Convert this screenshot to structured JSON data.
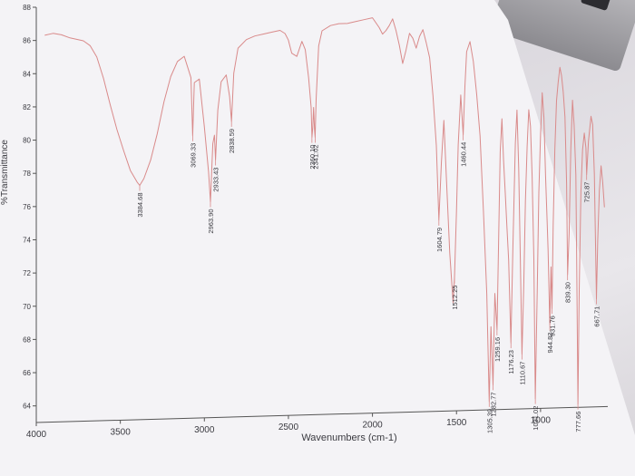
{
  "chart_data": {
    "type": "line",
    "title": "",
    "xlabel": "Wavenumbers (cm-1)",
    "ylabel": "%Transmittance",
    "xlim": [
      4000,
      600
    ],
    "ylim": [
      63,
      88
    ],
    "x_ticks": [
      {
        "value": 4000,
        "label": "4000"
      },
      {
        "value": 3500,
        "label": "3500"
      },
      {
        "value": 3000,
        "label": "3000"
      },
      {
        "value": 2500,
        "label": "2500"
      },
      {
        "value": 2000,
        "label": "2000"
      },
      {
        "value": 1500,
        "label": "1500"
      },
      {
        "value": 1000,
        "label": "1000"
      }
    ],
    "y_ticks": [
      {
        "value": 88,
        "label": "88"
      },
      {
        "value": 86,
        "label": "86"
      },
      {
        "value": 84,
        "label": "84"
      },
      {
        "value": 82,
        "label": "82"
      },
      {
        "value": 80,
        "label": "80"
      },
      {
        "value": 78,
        "label": "78"
      },
      {
        "value": 76,
        "label": "76"
      },
      {
        "value": 74,
        "label": "74"
      },
      {
        "value": 72,
        "label": "72"
      },
      {
        "value": 70,
        "label": "70"
      },
      {
        "value": 68,
        "label": "68"
      },
      {
        "value": 66,
        "label": "66"
      },
      {
        "value": 64,
        "label": "64"
      }
    ],
    "series": [
      {
        "color": "#d98a8a",
        "x": [
          3950,
          3900,
          3850,
          3800,
          3760,
          3720,
          3680,
          3640,
          3600,
          3560,
          3520,
          3480,
          3440,
          3400,
          3384.68,
          3360,
          3320,
          3280,
          3240,
          3200,
          3160,
          3120,
          3080,
          3069.33,
          3060,
          3030,
          3000,
          2975,
          2963.9,
          2950,
          2940,
          2933.43,
          2920,
          2900,
          2870,
          2850,
          2838.59,
          2825,
          2800,
          2750,
          2700,
          2650,
          2600,
          2550,
          2520,
          2500,
          2480,
          2450,
          2420,
          2400,
          2380,
          2365,
          2360.1,
          2355,
          2350,
          2345,
          2341.02,
          2335,
          2320,
          2300,
          2250,
          2200,
          2150,
          2100,
          2050,
          2000,
          1980,
          1960,
          1940,
          1920,
          1900,
          1880,
          1860,
          1840,
          1820,
          1800,
          1780,
          1760,
          1740,
          1720,
          1700,
          1680,
          1660,
          1640,
          1620,
          1604.79,
          1590,
          1575,
          1560,
          1540,
          1520,
          1512.25,
          1500,
          1490,
          1475,
          1460.44,
          1450,
          1440,
          1420,
          1400,
          1380,
          1360,
          1340,
          1320,
          1305.39,
          1295,
          1282.77,
          1272,
          1259.16,
          1250,
          1240,
          1230,
          1220,
          1210,
          1200,
          1190,
          1176.23,
          1165,
          1150,
          1140,
          1130,
          1120,
          1110.67,
          1100,
          1090,
          1080,
          1070,
          1060,
          1050,
          1040,
          1031.02,
          1020,
          1010,
          1000,
          990,
          980,
          970,
          960,
          955,
          944.82,
          938,
          931.76,
          925,
          915,
          905,
          895,
          885,
          875,
          865,
          855,
          845,
          839.3,
          830,
          820,
          810,
          800,
          790,
          785,
          777.66,
          770,
          760,
          750,
          740,
          730,
          725.87,
          715,
          700,
          690,
          680,
          667.71,
          660,
          650,
          640,
          630,
          620
        ],
        "y": [
          86.3,
          86.4,
          86.3,
          86.1,
          86.0,
          85.9,
          85.6,
          84.9,
          83.6,
          82.0,
          80.5,
          79.2,
          78.0,
          77.3,
          77.1,
          77.5,
          78.6,
          80.2,
          82.1,
          83.6,
          84.5,
          84.8,
          83.5,
          80.0,
          83.2,
          83.4,
          80.5,
          77.8,
          76.0,
          79.5,
          80.0,
          78.5,
          81.5,
          83.2,
          83.6,
          82.3,
          80.8,
          83.7,
          85.2,
          85.7,
          85.9,
          86.0,
          86.1,
          86.2,
          86.0,
          85.6,
          84.8,
          84.6,
          85.5,
          85.0,
          83.3,
          81.5,
          79.7,
          80.3,
          81.5,
          80.2,
          79.7,
          82.0,
          85.2,
          86.1,
          86.4,
          86.5,
          86.5,
          86.6,
          86.7,
          86.8,
          86.5,
          86.2,
          85.8,
          86.0,
          86.3,
          86.7,
          86.0,
          85.1,
          84.0,
          84.8,
          85.8,
          85.5,
          84.9,
          85.6,
          86.0,
          85.2,
          84.3,
          82.0,
          79.0,
          74.5,
          78.0,
          80.5,
          77.0,
          72.5,
          69.5,
          71.0,
          75.0,
          79.0,
          82.0,
          79.6,
          82.5,
          84.6,
          85.2,
          84.0,
          82.0,
          79.5,
          75.0,
          70.0,
          63.5,
          68.0,
          64.5,
          70.0,
          67.8,
          73.0,
          78.5,
          80.5,
          78.0,
          76.0,
          74.0,
          72.0,
          67.0,
          72.5,
          79.0,
          81.0,
          77.5,
          72.0,
          66.3,
          70.5,
          75.5,
          78.8,
          81.0,
          80.0,
          77.0,
          72.0,
          63.6,
          70.0,
          76.0,
          79.5,
          82.0,
          80.5,
          77.0,
          74.0,
          72.5,
          68.0,
          71.5,
          69.0,
          74.0,
          78.5,
          81.5,
          82.6,
          83.5,
          83.0,
          82.0,
          80.5,
          76.5,
          71.0,
          73.5,
          78.5,
          81.5,
          80.0,
          77.0,
          72.0,
          63.2,
          70.0,
          76.0,
          78.5,
          79.5,
          78.6,
          77.0,
          79.0,
          80.5,
          80.0,
          77.0,
          69.5,
          73.0,
          76.0,
          77.5,
          76.5,
          75.0
        ]
      }
    ],
    "peak_labels": [
      {
        "x": 3384.68,
        "text": "3384.68"
      },
      {
        "x": 3069.33,
        "text": "3069.33"
      },
      {
        "x": 2963.9,
        "text": "2963.90"
      },
      {
        "x": 2933.43,
        "text": "2933.43"
      },
      {
        "x": 2838.59,
        "text": "2838.59"
      },
      {
        "x": 2360.1,
        "text": "2360.10"
      },
      {
        "x": 2341.02,
        "text": "2341.02"
      },
      {
        "x": 1604.79,
        "text": "1604.79"
      },
      {
        "x": 1512.25,
        "text": "1512.25"
      },
      {
        "x": 1460.44,
        "text": "1460.44"
      },
      {
        "x": 1305.39,
        "text": "1305.39"
      },
      {
        "x": 1282.77,
        "text": "1282.77"
      },
      {
        "x": 1259.16,
        "text": "1259.16"
      },
      {
        "x": 1176.23,
        "text": "1176.23"
      },
      {
        "x": 1110.67,
        "text": "1110.67"
      },
      {
        "x": 1031.02,
        "text": "1031.02"
      },
      {
        "x": 944.82,
        "text": "944.82"
      },
      {
        "x": 931.76,
        "text": "931.76"
      },
      {
        "x": 839.3,
        "text": "839.30"
      },
      {
        "x": 777.66,
        "text": "777.66"
      },
      {
        "x": 725.87,
        "text": "725.87"
      },
      {
        "x": 667.71,
        "text": "667.71"
      }
    ],
    "grid": false,
    "legend": "none"
  }
}
